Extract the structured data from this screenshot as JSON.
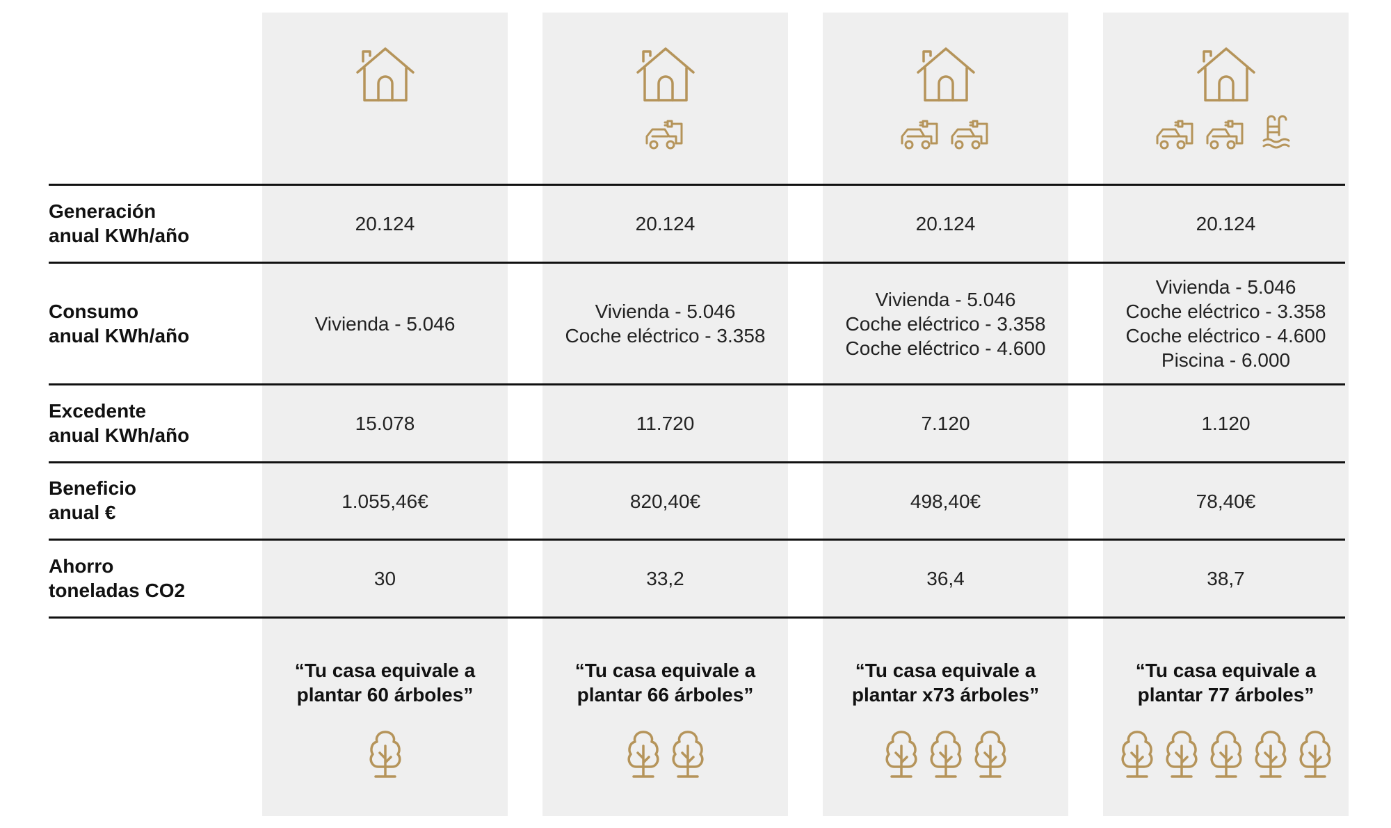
{
  "accent_color": "#b5945a",
  "rows": [
    {
      "label": [
        "Generación",
        "anual KWh/año"
      ]
    },
    {
      "label": [
        "Consumo",
        "anual KWh/año"
      ]
    },
    {
      "label": [
        "Excedente",
        "anual KWh/año"
      ]
    },
    {
      "label": [
        "Beneficio",
        "anual €"
      ]
    },
    {
      "label": [
        "Ahorro",
        "toneladas CO2"
      ]
    }
  ],
  "columns": [
    {
      "icons": [
        "house-icon"
      ],
      "generacion": "20.124",
      "consumo": [
        "Vivienda - 5.046"
      ],
      "excedente": "15.078",
      "beneficio": "1.055,46€",
      "ahorro": "30",
      "quote": [
        "“Tu casa equivale a",
        "plantar 60 árboles”"
      ],
      "trees": 1
    },
    {
      "icons": [
        "house-icon",
        "electric-car-icon"
      ],
      "generacion": "20.124",
      "consumo": [
        "Vivienda - 5.046",
        "Coche eléctrico - 3.358"
      ],
      "excedente": "11.720",
      "beneficio": "820,40€",
      "ahorro": "33,2",
      "quote": [
        "“Tu casa equivale a",
        "plantar 66 árboles”"
      ],
      "trees": 2
    },
    {
      "icons": [
        "house-icon",
        "electric-car-icon",
        "electric-car-icon"
      ],
      "generacion": "20.124",
      "consumo": [
        "Vivienda - 5.046",
        "Coche eléctrico - 3.358",
        "Coche eléctrico - 4.600"
      ],
      "excedente": "7.120",
      "beneficio": "498,40€",
      "ahorro": "36,4",
      "quote": [
        "“Tu casa equivale a",
        "plantar x73 árboles”"
      ],
      "trees": 3
    },
    {
      "icons": [
        "house-icon",
        "electric-car-icon",
        "electric-car-icon",
        "pool-icon"
      ],
      "generacion": "20.124",
      "consumo": [
        "Vivienda - 5.046",
        "Coche eléctrico - 3.358",
        "Coche eléctrico - 4.600",
        "Piscina - 6.000"
      ],
      "excedente": "1.120",
      "beneficio": "78,40€",
      "ahorro": "38,7",
      "quote": [
        "“Tu casa equivale a",
        "plantar 77 árboles”"
      ],
      "trees": 5
    }
  ]
}
